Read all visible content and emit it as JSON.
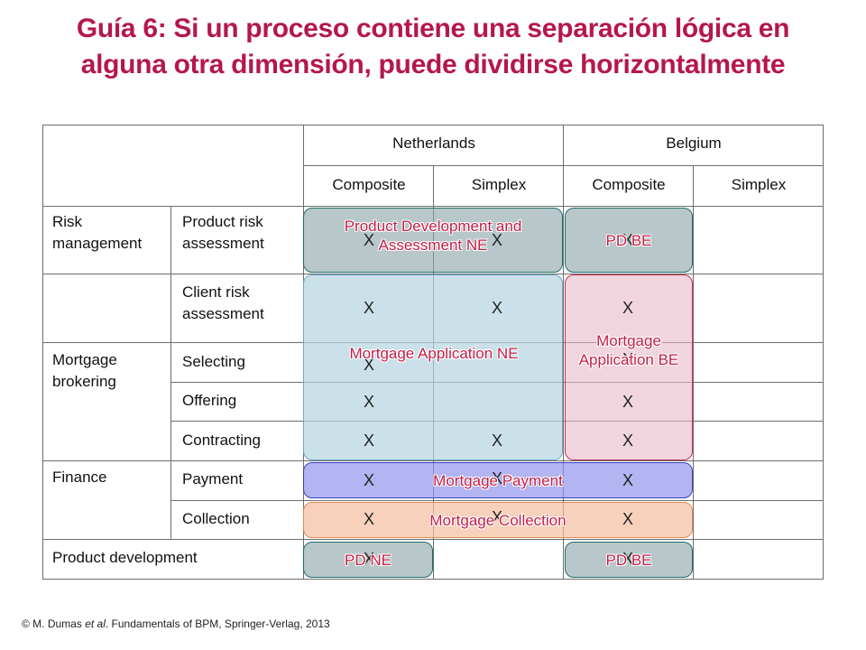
{
  "title": {
    "line1": "Guía 6: Si un proceso contiene una separación lógica en",
    "line2": "alguna otra dimensión, puede dividirse horizontalmente"
  },
  "table": {
    "countries": [
      "Netherlands",
      "Belgium"
    ],
    "subheaders": [
      "Composite",
      "Simplex",
      "Composite",
      "Simplex"
    ],
    "groups": {
      "risk": "Risk management",
      "mortgage": "Mortgage brokering",
      "finance": "Finance",
      "product_dev": "Product development"
    },
    "rows": {
      "product_risk": "Product risk assessment",
      "client_risk": "Client risk assessment",
      "selecting": "Selecting",
      "offering": "Offering",
      "contracting": "Contracting",
      "payment": "Payment",
      "collection": "Collection"
    },
    "mark": "X"
  },
  "overlays": {
    "product_dev_ne": "Product Development and Assessment NE",
    "pd_be_top": "PD BE",
    "mortgage_app_ne": "Mortgage Application NE",
    "mortgage_app_be": "Mortgage Application BE",
    "mortgage_payment": "Mortgage Payment",
    "mortgage_collection": "Mortgage Collection",
    "pd_ne": "PD NE",
    "pd_be_bottom": "PD BE"
  },
  "colors": {
    "title": "#b5174b",
    "label": "#c41d47"
  },
  "footer": {
    "prefix": "© M. Dumas ",
    "italic": "et al",
    "suffix": ". Fundamentals of BPM, Springer-Verlag, 2013"
  }
}
